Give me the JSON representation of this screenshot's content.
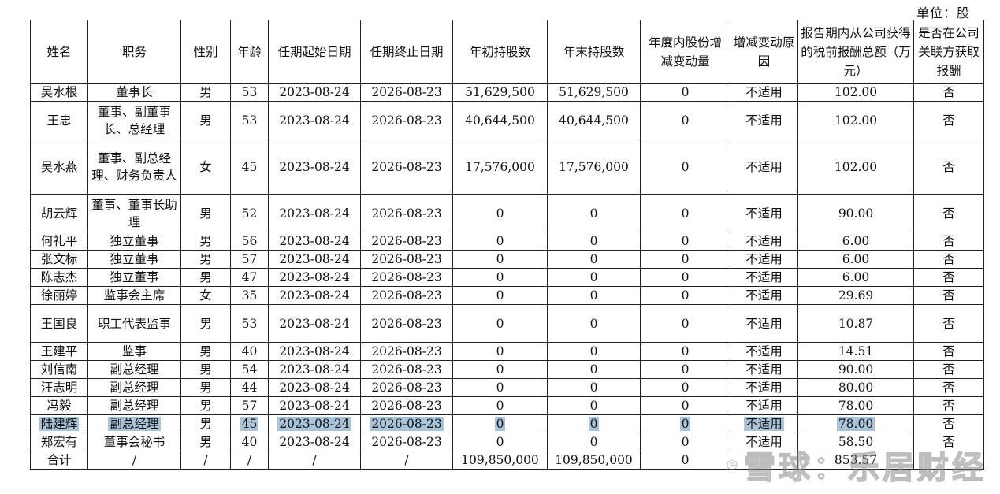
{
  "unit_label": "单位：股",
  "headers": [
    "姓名",
    "职务",
    "性别",
    "年龄",
    "任期起始日期",
    "任期终止日期",
    "年初持股数",
    "年末持股数",
    "年度内股份增减变动量",
    "增减变动原因",
    "报告期内从公司获得的税前报酬总额（万元）",
    "是否在公司关联方获取报酬"
  ],
  "rows": [
    [
      "吴水根",
      "董事长",
      "男",
      "53",
      "2023-08-24",
      "2026-08-23",
      "51,629,500",
      "51,629,500",
      "0",
      "不适用",
      "102.00",
      "否"
    ],
    [
      "王忠",
      "董事、副董事长、总经理",
      "男",
      "53",
      "2023-08-24",
      "2026-08-23",
      "40,644,500",
      "40,644,500",
      "0",
      "不适用",
      "102.00",
      "否"
    ],
    [
      "吴水燕",
      "董事、副总经理、财务负责人",
      "女",
      "45",
      "2023-08-24",
      "2026-08-23",
      "17,576,000",
      "17,576,000",
      "0",
      "不适用",
      "102.00",
      "否"
    ],
    [
      "胡云辉",
      "董事、董事长助理",
      "男",
      "52",
      "2023-08-24",
      "2026-08-23",
      "0",
      "0",
      "0",
      "不适用",
      "90.00",
      "否"
    ],
    [
      "何礼平",
      "独立董事",
      "男",
      "56",
      "2023-08-24",
      "2026-08-23",
      "0",
      "0",
      "0",
      "不适用",
      "6.00",
      "否"
    ],
    [
      "张文标",
      "独立董事",
      "男",
      "57",
      "2023-08-24",
      "2026-08-23",
      "0",
      "0",
      "0",
      "不适用",
      "6.00",
      "否"
    ],
    [
      "陈志杰",
      "独立董事",
      "男",
      "47",
      "2023-08-24",
      "2026-08-23",
      "0",
      "0",
      "0",
      "不适用",
      "6.00",
      "否"
    ],
    [
      "徐丽婷",
      "监事会主席",
      "女",
      "35",
      "2023-08-24",
      "2026-08-23",
      "0",
      "0",
      "0",
      "不适用",
      "29.69",
      "否"
    ],
    [
      "王国良",
      "职工代表监事",
      "男",
      "53",
      "2023-08-24",
      "2026-08-23",
      "0",
      "0",
      "0",
      "不适用",
      "10.87",
      "否"
    ],
    [
      "王建平",
      "监事",
      "男",
      "40",
      "2023-08-24",
      "2026-08-23",
      "0",
      "0",
      "0",
      "不适用",
      "14.51",
      "否"
    ],
    [
      "刘信南",
      "副总经理",
      "男",
      "54",
      "2023-08-24",
      "2026-08-23",
      "0",
      "0",
      "0",
      "不适用",
      "90.00",
      "否"
    ],
    [
      "汪志明",
      "副总经理",
      "男",
      "44",
      "2023-08-24",
      "2026-08-23",
      "0",
      "0",
      "0",
      "不适用",
      "80.00",
      "否"
    ],
    [
      "冯毅",
      "副总经理",
      "男",
      "57",
      "2023-08-24",
      "2026-08-23",
      "0",
      "0",
      "0",
      "不适用",
      "78.00",
      "否"
    ],
    [
      "陆建辉",
      "副总经理",
      "男",
      "45",
      "2023-08-24",
      "2026-08-23",
      "0",
      "0",
      "0",
      "不适用",
      "78.00",
      "否"
    ],
    [
      "郑宏有",
      "董事会秘书",
      "男",
      "40",
      "2023-08-24",
      "2026-08-23",
      "0",
      "0",
      "0",
      "不适用",
      "58.50",
      "否"
    ],
    [
      "合计",
      "/",
      "/",
      "/",
      "/",
      "/",
      "109,850,000",
      "109,850,000",
      "0",
      "",
      "853.57",
      ""
    ]
  ],
  "highlighted_row": 13,
  "highlighted_cols": [
    0,
    1,
    3,
    4,
    5,
    6,
    7,
    8,
    9,
    10
  ],
  "highlight_color": "#a9c3d9",
  "watermark": {
    "text": "雪球：乐居财经",
    "logo": "xueqiu-snowball-logo"
  }
}
